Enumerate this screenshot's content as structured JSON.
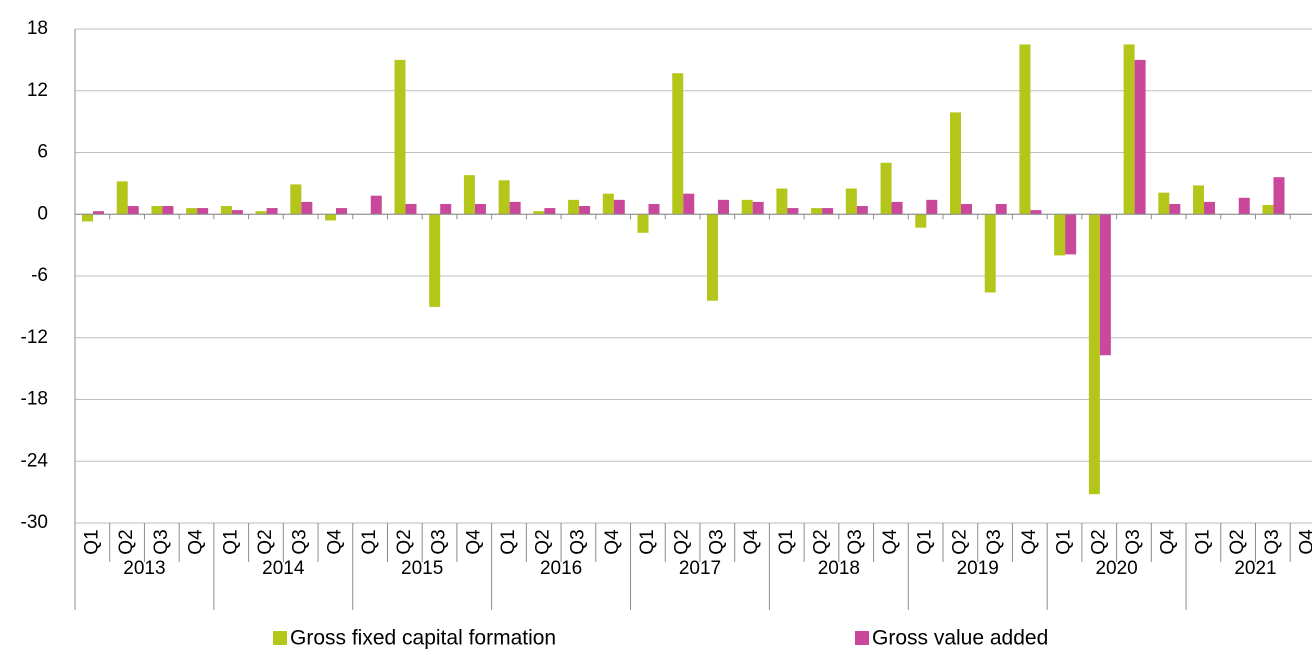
{
  "chart_data": {
    "type": "bar",
    "categories": [
      "Q1",
      "Q2",
      "Q3",
      "Q4",
      "Q1",
      "Q2",
      "Q3",
      "Q4",
      "Q1",
      "Q2",
      "Q3",
      "Q4",
      "Q1",
      "Q2",
      "Q3",
      "Q4",
      "Q1",
      "Q2",
      "Q3",
      "Q4",
      "Q1",
      "Q2",
      "Q3",
      "Q4",
      "Q1",
      "Q2",
      "Q3",
      "Q4",
      "Q1",
      "Q2",
      "Q3",
      "Q4",
      "Q1",
      "Q2",
      "Q3",
      "Q4"
    ],
    "years": [
      "2013",
      "2014",
      "2015",
      "2016",
      "2017",
      "2018",
      "2019",
      "2020",
      "2021"
    ],
    "series": [
      {
        "name": "Gross fixed capital formation",
        "color": "#b5c61a",
        "values": [
          -0.7,
          3.2,
          0.8,
          0.6,
          0.8,
          0.3,
          2.9,
          -0.6,
          0,
          15.0,
          -9.0,
          3.8,
          3.3,
          0.3,
          1.4,
          2.0,
          -1.8,
          13.7,
          -8.4,
          1.4,
          2.5,
          0.6,
          2.5,
          5.0,
          -1.3,
          9.9,
          -7.6,
          16.5,
          -4.0,
          -27.2,
          16.5,
          2.1,
          2.8,
          0,
          0.9,
          null
        ]
      },
      {
        "name": "Gross value added",
        "color": "#c9489b",
        "values": [
          0.3,
          0.8,
          0.8,
          0.6,
          0.4,
          0.6,
          1.2,
          0.6,
          1.8,
          1.0,
          1.0,
          1.0,
          1.2,
          0.6,
          0.8,
          1.4,
          1.0,
          2.0,
          1.4,
          1.2,
          0.6,
          0.6,
          0.8,
          1.2,
          1.4,
          1.0,
          1.0,
          0.4,
          -3.9,
          -13.7,
          15.0,
          1.0,
          1.2,
          1.6,
          3.6,
          null
        ]
      }
    ],
    "ylim": [
      -30,
      18
    ],
    "yticks": [
      -30,
      -24,
      -18,
      -12,
      -6,
      0,
      6,
      12,
      18
    ],
    "grid": true
  }
}
